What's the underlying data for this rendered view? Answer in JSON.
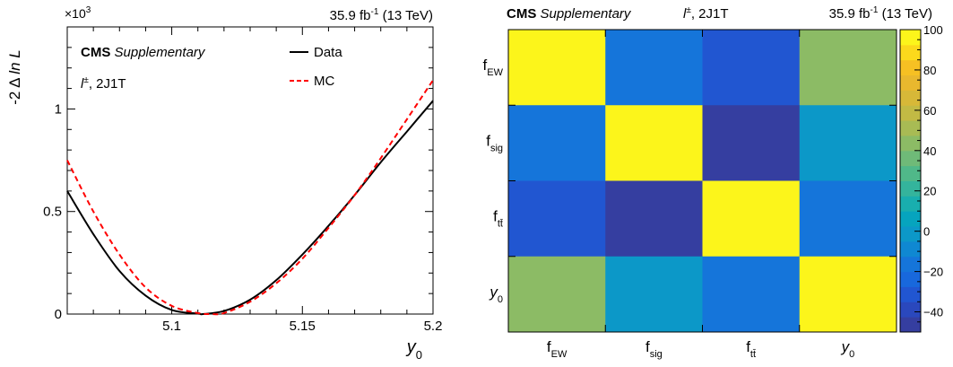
{
  "chart_data": [
    {
      "type": "line",
      "header_lumi": "35.9 fb",
      "header_lumi_sup": "-1",
      "header_energy": " (13 TeV)",
      "experiment": "CMS",
      "label": "Supplementary",
      "channel_lep": "l",
      "channel_sup": "±",
      "channel_jets": ", 2J1T",
      "xlabel": "y",
      "xlabel_sub": "0",
      "ylabel": "-2 Δ ln L",
      "yexponent": "×10",
      "yexponent_sup": "3",
      "xlim": [
        5.06,
        5.2
      ],
      "ylim": [
        0,
        1.4
      ],
      "xticks": [
        5.1,
        5.15,
        5.2
      ],
      "xtick_labels": [
        "5.1",
        "5.15",
        "5.2"
      ],
      "yticks": [
        0,
        0.5,
        1
      ],
      "ytick_labels": [
        "0",
        "0.5",
        "1"
      ],
      "legend_position": "top-right",
      "series": [
        {
          "name": "Data",
          "color": "#000000",
          "style": "solid",
          "x": [
            5.06,
            5.07,
            5.08,
            5.09,
            5.1,
            5.11,
            5.112,
            5.12,
            5.13,
            5.14,
            5.15,
            5.16,
            5.17,
            5.18,
            5.19,
            5.2
          ],
          "y": [
            0.6,
            0.39,
            0.21,
            0.09,
            0.02,
            0.002,
            0.0,
            0.015,
            0.07,
            0.165,
            0.29,
            0.43,
            0.58,
            0.74,
            0.89,
            1.04
          ]
        },
        {
          "name": "MC",
          "color": "#ff0000",
          "style": "dashed",
          "x": [
            5.06,
            5.07,
            5.08,
            5.09,
            5.1,
            5.11,
            5.115,
            5.12,
            5.13,
            5.14,
            5.15,
            5.16,
            5.17,
            5.18,
            5.19,
            5.2
          ],
          "y": [
            0.75,
            0.5,
            0.29,
            0.13,
            0.04,
            0.005,
            0.0,
            0.005,
            0.06,
            0.15,
            0.27,
            0.42,
            0.58,
            0.76,
            0.95,
            1.14
          ]
        }
      ]
    },
    {
      "type": "heatmap",
      "experiment": "CMS",
      "label": "Supplementary",
      "channel_lep": "l",
      "channel_sup": "±",
      "channel_jets": ", 2J1T",
      "header_lumi": "35.9 fb",
      "header_lumi_sup": "-1",
      "header_energy": " (13 TeV)",
      "categories": [
        {
          "base": "f",
          "sub": "EW",
          "italic": false
        },
        {
          "base": "f",
          "sub": "sig",
          "italic": false
        },
        {
          "base": "f",
          "sub": "tt̄",
          "italic": false
        },
        {
          "base": "y",
          "sub": "0",
          "italic": true
        }
      ],
      "values": [
        [
          100,
          -20,
          -30,
          40
        ],
        [
          -20,
          100,
          -45,
          0
        ],
        [
          -30,
          -45,
          100,
          -20
        ],
        [
          40,
          0,
          -20,
          100
        ]
      ],
      "zlim": [
        -50,
        100
      ],
      "zticks": [
        -40,
        -20,
        0,
        20,
        40,
        60,
        80,
        100
      ],
      "ztick_labels": [
        "−40",
        "−20",
        "0",
        "20",
        "40",
        "60",
        "80",
        "100"
      ]
    }
  ]
}
